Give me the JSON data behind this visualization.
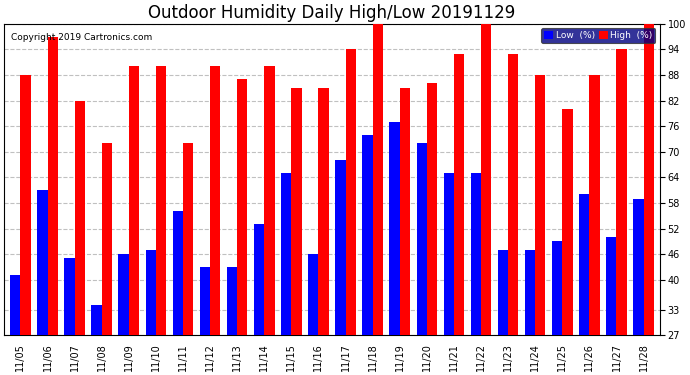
{
  "title": "Outdoor Humidity Daily High/Low 20191129",
  "copyright": "Copyright 2019 Cartronics.com",
  "dates": [
    "11/05",
    "11/06",
    "11/07",
    "11/08",
    "11/09",
    "11/10",
    "11/11",
    "11/12",
    "11/13",
    "11/14",
    "11/15",
    "11/16",
    "11/17",
    "11/18",
    "11/19",
    "11/20",
    "11/21",
    "11/22",
    "11/23",
    "11/24",
    "11/25",
    "11/26",
    "11/27",
    "11/28"
  ],
  "high": [
    88,
    97,
    82,
    72,
    90,
    90,
    72,
    90,
    87,
    90,
    85,
    85,
    94,
    100,
    85,
    86,
    93,
    100,
    93,
    88,
    80,
    88,
    94,
    100
  ],
  "low": [
    41,
    61,
    45,
    34,
    46,
    47,
    56,
    43,
    43,
    53,
    65,
    46,
    68,
    74,
    77,
    72,
    65,
    65,
    47,
    47,
    49,
    60,
    50,
    59
  ],
  "ylim_min": 27,
  "ylim_max": 100,
  "yticks": [
    27,
    33,
    40,
    46,
    52,
    58,
    64,
    70,
    76,
    82,
    88,
    94,
    100
  ],
  "bar_width": 0.38,
  "high_color": "#FF0000",
  "low_color": "#0000FF",
  "bg_color": "#FFFFFF",
  "grid_color": "#C0C0C0",
  "title_fontsize": 12,
  "tick_fontsize": 7,
  "legend_low_label": "Low  (%)",
  "legend_high_label": "High  (%)"
}
